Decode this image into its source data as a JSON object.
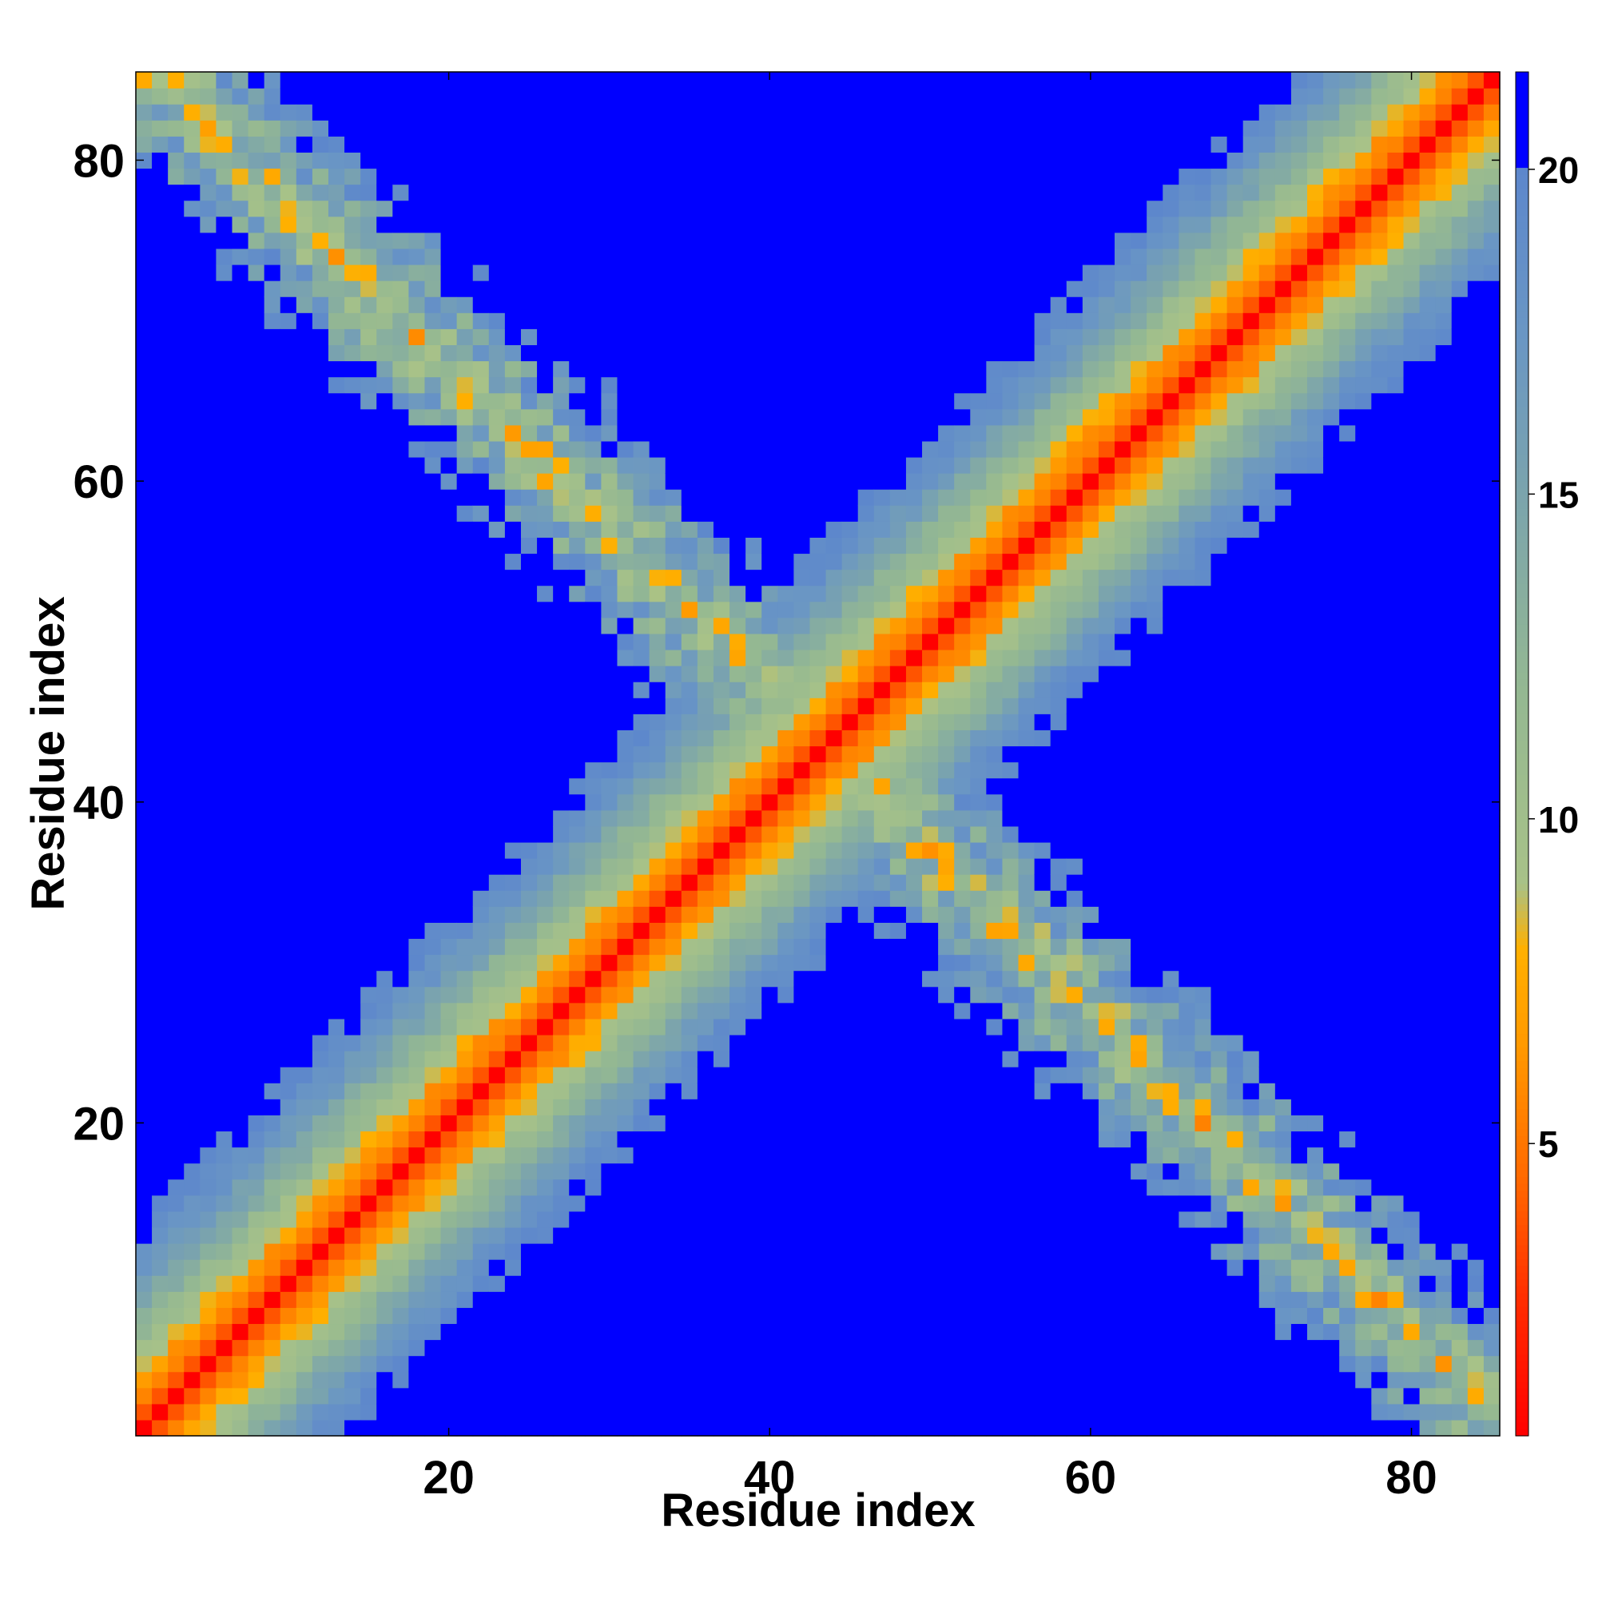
{
  "chart_data": {
    "type": "heatmap",
    "xlabel": "Residue index",
    "ylabel": "Residue index",
    "n_residues": 85,
    "x_range": [
      1,
      85
    ],
    "y_range": [
      1,
      85
    ],
    "x_ticks": [
      20,
      40,
      60,
      80
    ],
    "y_ticks": [
      20,
      40,
      60,
      80
    ],
    "x_tick_labels": [
      "20",
      "40",
      "60",
      "80"
    ],
    "y_tick_labels": [
      "20",
      "40",
      "60",
      "80"
    ],
    "colorbar": {
      "min": 0.5,
      "max": 21.5,
      "ticks": [
        5,
        10,
        15,
        20
      ],
      "tick_labels": [
        "5",
        "10",
        "15",
        "20"
      ],
      "cutoff": 20,
      "color_above_cutoff": "#0000ff",
      "stops": [
        {
          "value": 0.5,
          "color": "#ff0000"
        },
        {
          "value": 2.5,
          "color": "#ff2a00"
        },
        {
          "value": 4.5,
          "color": "#ff6a00"
        },
        {
          "value": 6.5,
          "color": "#ff9900"
        },
        {
          "value": 8.0,
          "color": "#ffb000"
        },
        {
          "value": 9.0,
          "color": "#a8c288"
        },
        {
          "value": 12.0,
          "color": "#94b892"
        },
        {
          "value": 15.0,
          "color": "#7ba4ad"
        },
        {
          "value": 17.5,
          "color": "#6a96c4"
        },
        {
          "value": 20.0,
          "color": "#5d87cc"
        }
      ]
    },
    "description_data": {
      "main_diagonal_distance_per_offset": [
        0,
        3.8,
        5.6,
        6.8,
        8.8,
        10.4,
        11.8,
        13.2,
        14.6,
        16.0,
        17.3,
        18.5,
        19.6
      ],
      "antidiagonal_sum": 87,
      "antidiagonal_min_distance": 5.5,
      "antidiagonal_decay_per_residue_off_axis": 3.2,
      "contact_region_y_range": [
        1,
        85
      ]
    },
    "grid": false,
    "legend": "none"
  }
}
